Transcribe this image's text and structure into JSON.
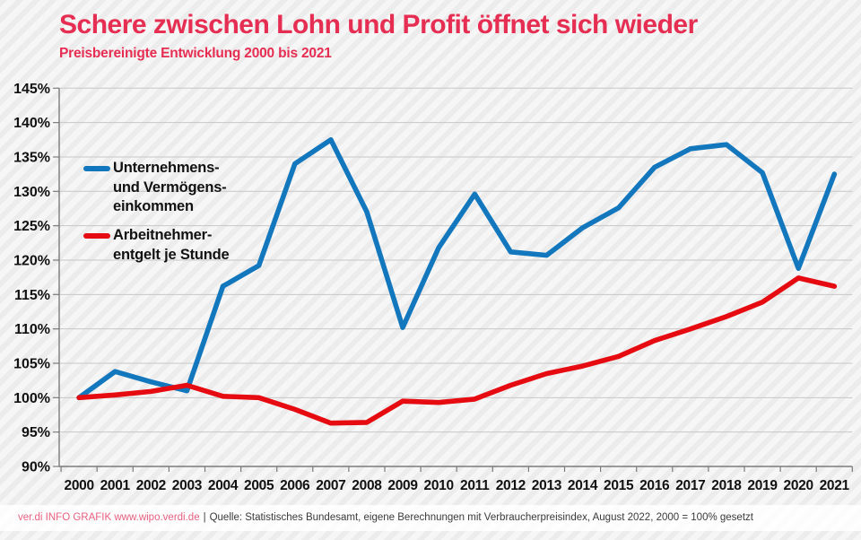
{
  "header": {
    "title": "Schere zwischen Lohn und Profit öffnet sich wieder",
    "subtitle": "Preisbereinigte Entwicklung 2000 bis 2021"
  },
  "legend": {
    "items": [
      {
        "id": "unternehmens-und-vermoegenseinkommen",
        "color": "#1377be",
        "lines": [
          "Unternehmens-",
          "und Vermögens-",
          "einkommen"
        ]
      },
      {
        "id": "arbeitnehmerentgelt-je-stunde",
        "color": "#e60b10",
        "lines": [
          "Arbeitnehmer-",
          "entgelt je Stunde"
        ]
      }
    ]
  },
  "chart_data": {
    "type": "line",
    "title": "Schere zwischen Lohn und Profit öffnet sich wieder",
    "subtitle": "Preisbereinigte Entwicklung 2000 bis 2021",
    "x": [
      2000,
      2001,
      2002,
      2003,
      2004,
      2005,
      2006,
      2007,
      2008,
      2009,
      2010,
      2011,
      2012,
      2013,
      2014,
      2015,
      2016,
      2017,
      2018,
      2019,
      2020,
      2021
    ],
    "series": [
      {
        "id": "unternehmens-und-vermoegenseinkommen",
        "name": "Unternehmens- und Vermögenseinkommen",
        "color": "#1377be",
        "values": [
          100,
          103.8,
          102.3,
          101,
          116.2,
          119.2,
          134,
          137.5,
          127,
          110.2,
          121.8,
          129.6,
          121.2,
          120.7,
          124.7,
          127.6,
          133.5,
          136.2,
          136.8,
          132.7,
          118.8,
          132.5
        ]
      },
      {
        "id": "arbeitnehmerentgelt-je-stunde",
        "name": "Arbeitnehmerentgelt je Stunde",
        "color": "#e60b10",
        "values": [
          100,
          100.4,
          100.9,
          101.8,
          100.2,
          100,
          98.3,
          96.3,
          96.4,
          99.5,
          99.3,
          99.8,
          101.8,
          103.5,
          104.6,
          106,
          108.3,
          110,
          111.8,
          113.9,
          117.4,
          116.2
        ]
      }
    ],
    "ylim": [
      90,
      145
    ],
    "ytick_step": 5,
    "ytick_suffix": "%",
    "grid": true,
    "legend_position": "inside-upper-left",
    "baseline_note": "2000 = 100%"
  },
  "footer": {
    "brand": "ver.di INFO GRAFIK  www.wipo.verdi.de",
    "separator": "|",
    "source": "Quelle: Statistisches Bundesamt, eigene Berechnungen mit Verbraucherpreisindex, August 2022, 2000 = 100% gesetzt"
  }
}
